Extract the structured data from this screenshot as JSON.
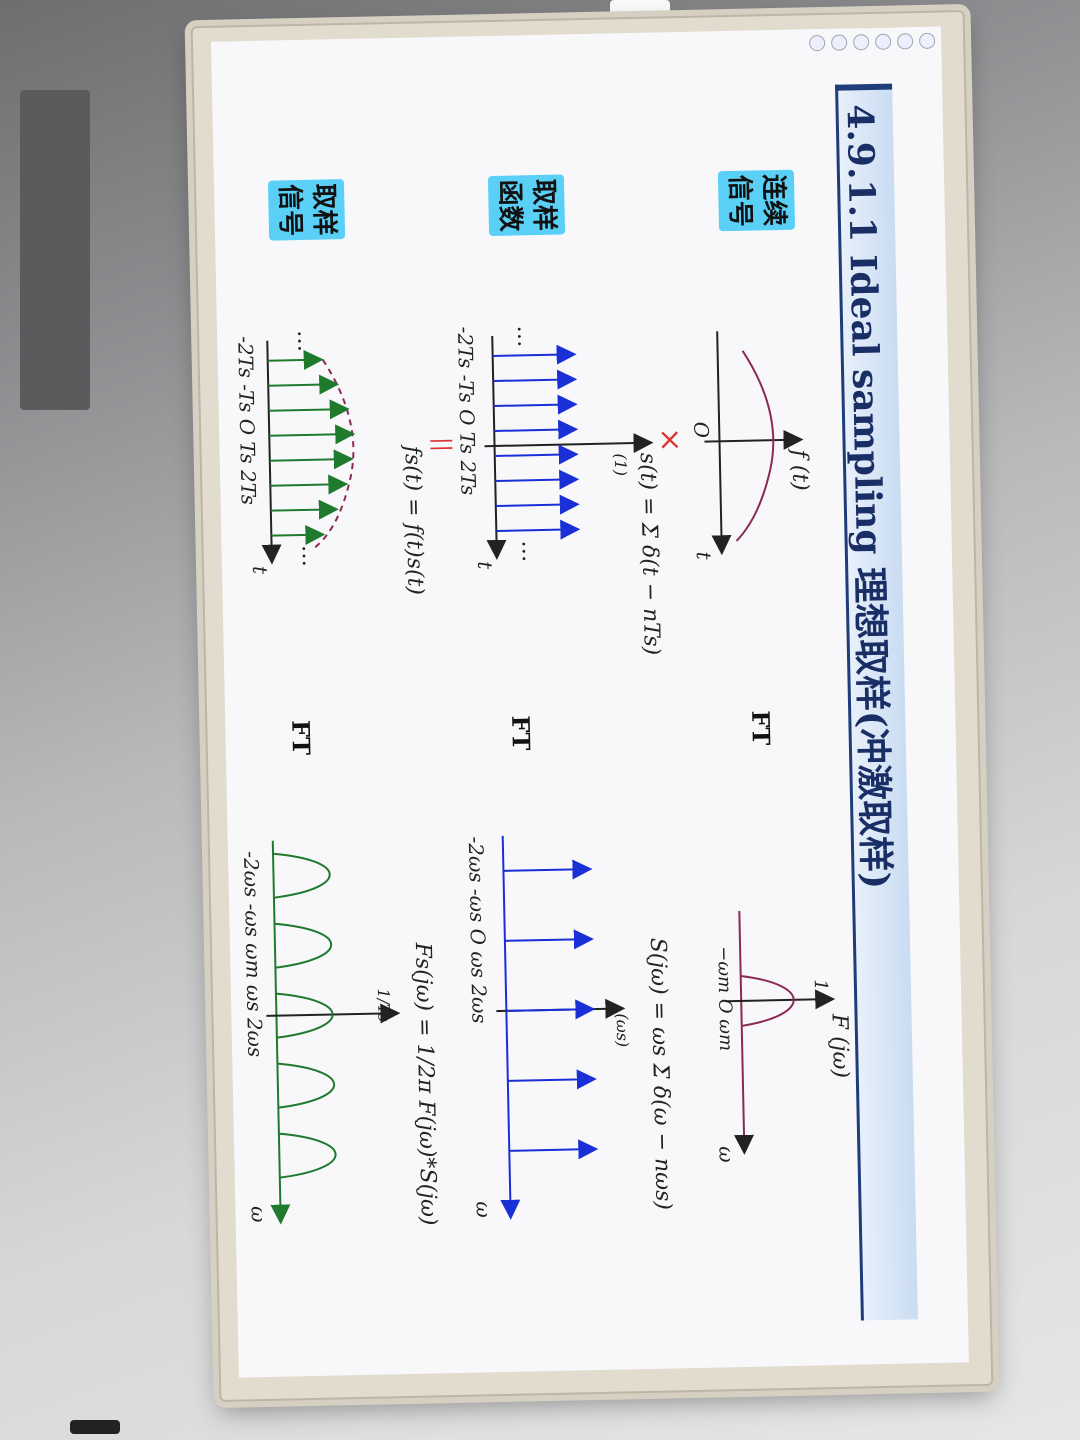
{
  "slide": {
    "title": "4.9.1.1 Ideal sampling 理想取样(冲激取样)",
    "tags": {
      "continuous": "连续信号",
      "sampling_function": "取样函数",
      "sampled": "取样信号"
    },
    "ft_label": "FT",
    "row1": {
      "time_label": "f (t)",
      "origin": "O",
      "t_axis": "t",
      "freq_label": "F (jω)",
      "peak": "1",
      "freq_ticks": "−ωm O ωm",
      "w_axis": "ω"
    },
    "multiply": "×",
    "row2": {
      "formula": "s(t) = Σ δ(t − nTs)",
      "impulse": "(1)",
      "ticks": "-2Ts -Ts O Ts 2Ts",
      "t_axis": "t",
      "dots": "…",
      "freq_formula": "S(jω) = ωs Σ δ(ω − nωs)",
      "freq_impulse": "(ωs)",
      "freq_ticks": "-2ωs -ωs O ωs 2ωs",
      "w_axis": "ω"
    },
    "equals": "||",
    "row3": {
      "formula": "fs(t) = f(t)s(t)",
      "ticks": "-2Ts -Ts O Ts 2Ts",
      "t_axis": "t",
      "dots": "…",
      "freq_formula": "Fs(jω) = 1/2π F(jω)*S(jω)",
      "freq_peak": "1/Ts",
      "freq_ticks": "-2ωs -ωs ωm ωs 2ωs",
      "w_axis": "ω"
    }
  },
  "colors": {
    "title_bar": "#c9dcf2",
    "tag": "#5ad0f7",
    "impulse_blue": "#1a2fd6",
    "sample_green": "#1f7a2e",
    "curve_purple": "#8b2a52"
  }
}
